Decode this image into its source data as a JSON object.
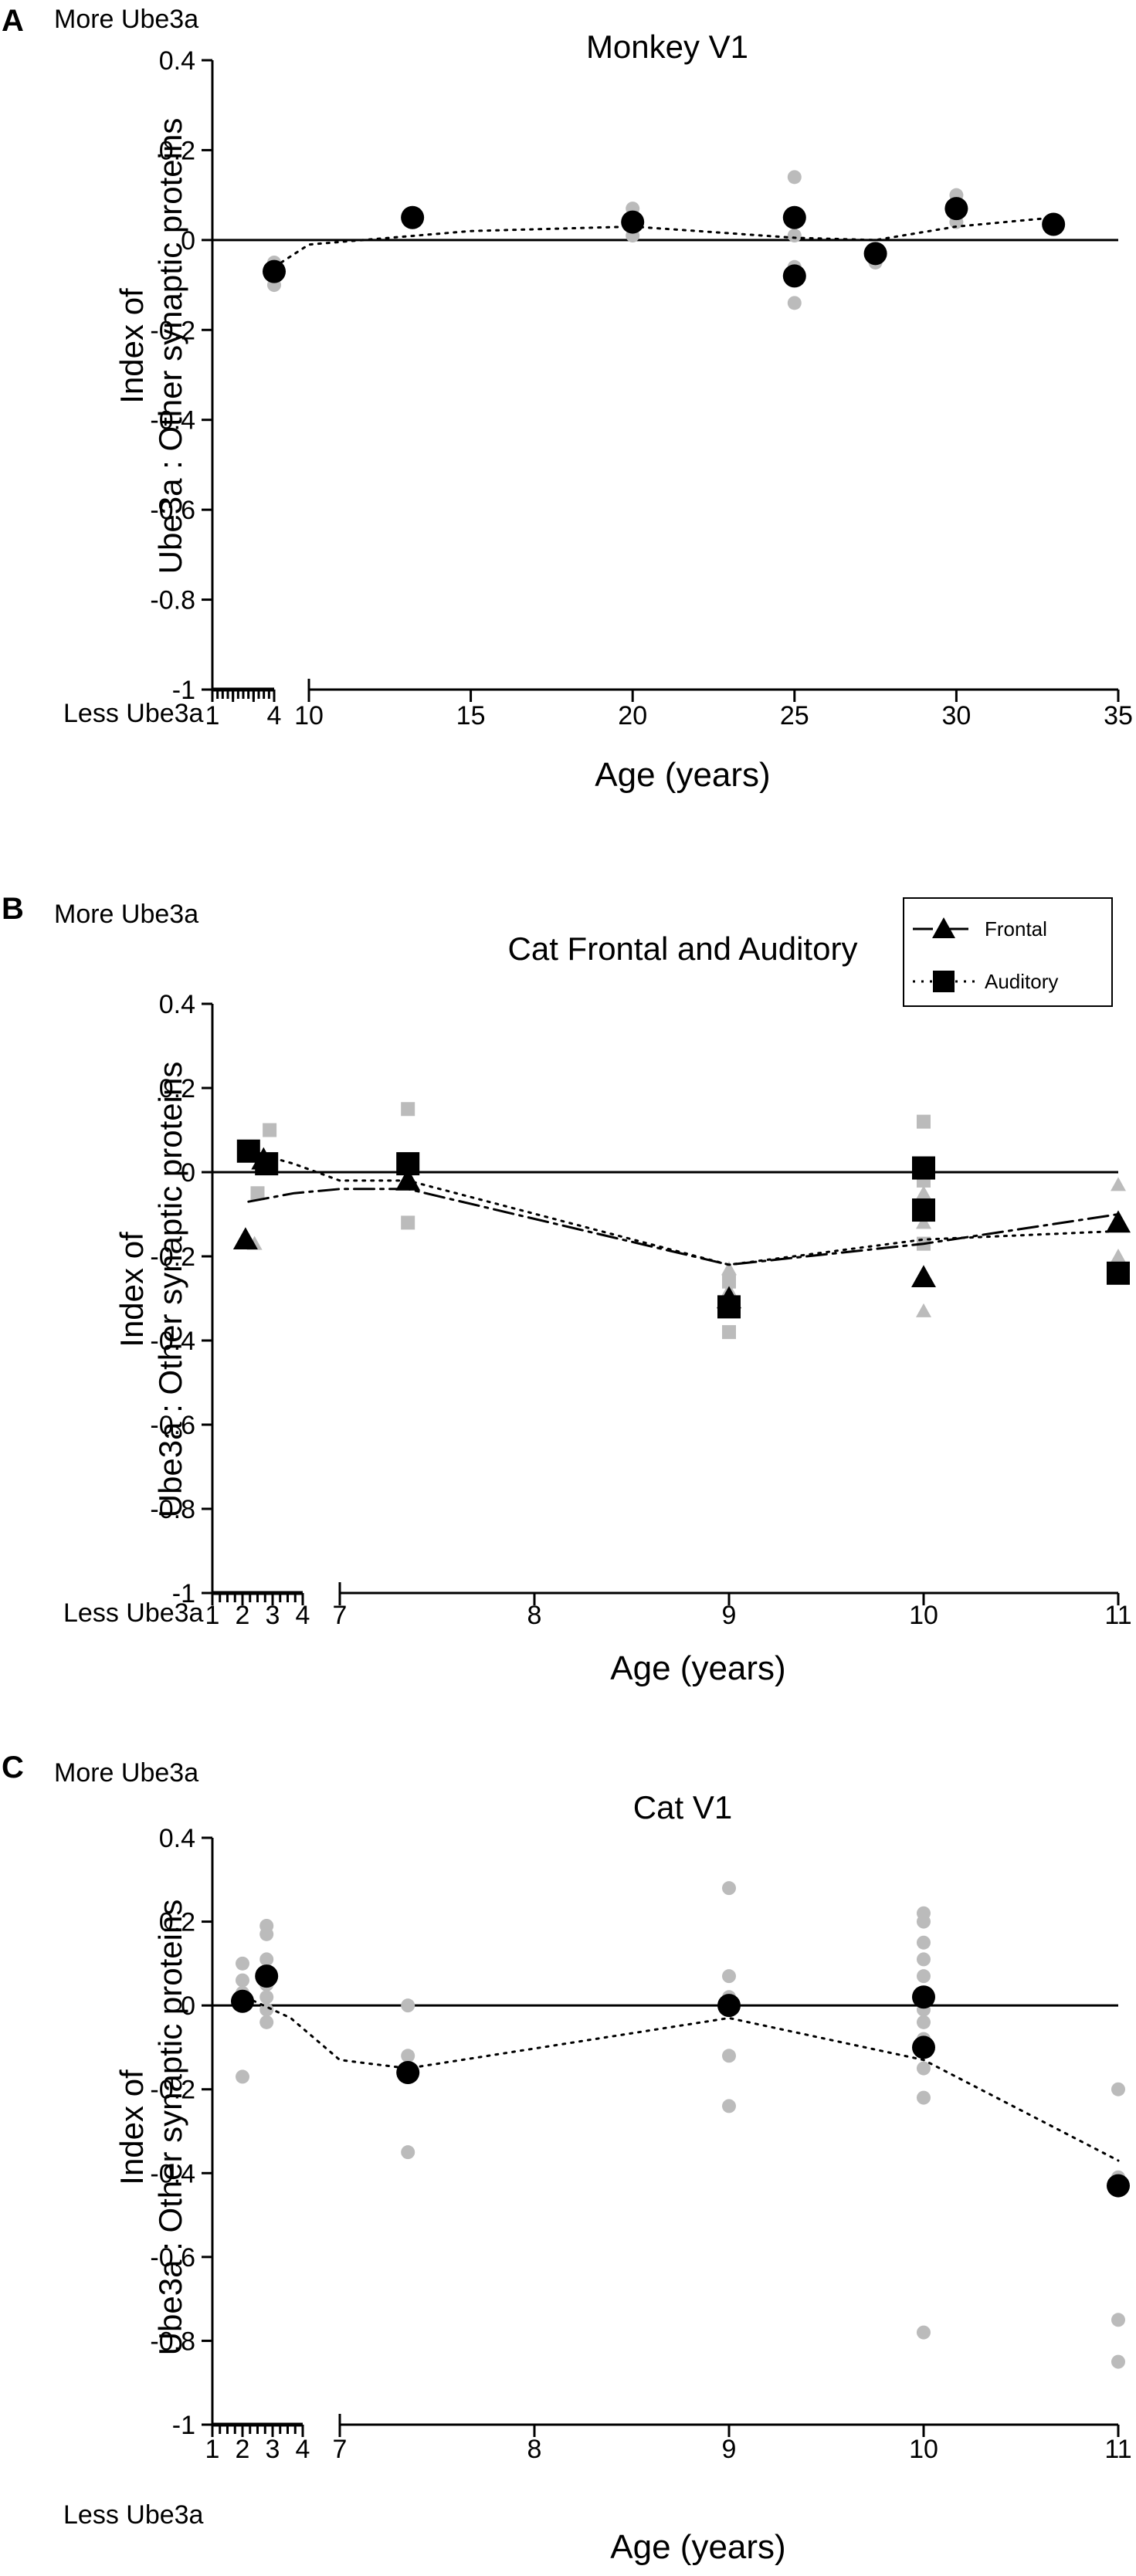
{
  "figure_description_text": {
    "ylabel_line1": "Index of",
    "ylabel_line2": "Ube3a : Other synaptic proteins"
  },
  "chart_data": [
    {
      "id": "A",
      "panel_letter": "A",
      "type": "scatter",
      "title": "Monkey V1",
      "xlabel": "Age (years)",
      "ylabel": "Index of Ube3a : Other synaptic proteins",
      "more_label": "More Ube3a",
      "less_label": "Less Ube3a",
      "ylim": [
        -1,
        0.4
      ],
      "y_ticks": [
        "0.4",
        "0.2",
        "0",
        "-0.2",
        "-0.4",
        "-0.6",
        "-0.8",
        "-1"
      ],
      "y_tick_values": [
        0.4,
        0.2,
        0,
        -0.2,
        -0.4,
        -0.6,
        -0.8,
        -1
      ],
      "x_segments": [
        {
          "range": [
            1,
            4
          ],
          "ticks": [
            1,
            2,
            3,
            4
          ],
          "tick_labels": [
            "1",
            "",
            "",
            "4"
          ],
          "minor_step": 0.25
        },
        {
          "range": [
            10,
            35
          ],
          "ticks": [
            10,
            15,
            20,
            25,
            30,
            35
          ],
          "tick_labels": [
            "10",
            "15",
            "20",
            "25",
            "30",
            "35"
          ]
        }
      ],
      "series": [
        {
          "name": "Individual",
          "marker": "circle",
          "color": "#bbbbbb",
          "points": [
            [
              4,
              -0.05
            ],
            [
              4,
              -0.1
            ],
            [
              13.2,
              0.06
            ],
            [
              13.2,
              0.04
            ],
            [
              20,
              0.07
            ],
            [
              20,
              0.01
            ],
            [
              25,
              0.14
            ],
            [
              25,
              0.06
            ],
            [
              25,
              0.01
            ],
            [
              25,
              -0.06
            ],
            [
              25,
              -0.14
            ],
            [
              27.5,
              -0.03
            ],
            [
              27.5,
              -0.05
            ],
            [
              30,
              0.1
            ],
            [
              30,
              0.04
            ]
          ]
        },
        {
          "name": "Mean",
          "marker": "circle",
          "color": "#000000",
          "points": [
            [
              4,
              -0.07
            ],
            [
              13.2,
              0.05
            ],
            [
              20,
              0.04
            ],
            [
              25,
              0.05
            ],
            [
              25,
              -0.08
            ],
            [
              27.5,
              -0.03
            ],
            [
              30,
              0.07
            ],
            [
              33,
              0.035
            ]
          ]
        },
        {
          "name": "Trend",
          "marker": "line",
          "style": "dotted",
          "color": "#000000",
          "points": [
            [
              4,
              -0.06
            ],
            [
              4.8,
              -0.05
            ],
            [
              10,
              -0.01
            ],
            [
              15,
              0.02
            ],
            [
              20,
              0.03
            ],
            [
              25,
              0.005
            ],
            [
              27.5,
              0.0
            ],
            [
              30,
              0.03
            ],
            [
              33,
              0.05
            ]
          ]
        }
      ]
    },
    {
      "id": "B",
      "panel_letter": "B",
      "type": "scatter",
      "title": "Cat Frontal and Auditory",
      "xlabel": "Age (years)",
      "ylabel": "Index of Ube3a : Other synaptic proteins",
      "more_label": "More Ube3a",
      "less_label": "Less Ube3a",
      "ylim": [
        -1,
        0.4
      ],
      "y_ticks": [
        "0.4",
        "0.2",
        "0",
        "-0.2",
        "-0.4",
        "-0.6",
        "-0.8",
        "-1"
      ],
      "y_tick_values": [
        0.4,
        0.2,
        0,
        -0.2,
        -0.4,
        -0.6,
        -0.8,
        -1
      ],
      "x_segments": [
        {
          "range": [
            1,
            4
          ],
          "ticks": [
            1,
            2,
            3,
            4
          ],
          "tick_labels": [
            "1",
            "2",
            "3",
            "4"
          ],
          "minor_step": 0.25
        },
        {
          "range": [
            7,
            11
          ],
          "ticks": [
            7,
            8,
            9,
            10,
            11
          ],
          "tick_labels": [
            "7",
            "8",
            "9",
            "10",
            "11"
          ]
        }
      ],
      "legend": [
        {
          "label": "Frontal",
          "marker": "triangle",
          "style": "dashdot"
        },
        {
          "label": "Auditory",
          "marker": "square",
          "style": "dotted"
        }
      ],
      "series": [
        {
          "name": "Frontal individual",
          "marker": "triangle",
          "color": "#bbbbbb",
          "points": [
            [
              2.2,
              0.05
            ],
            [
              2.4,
              -0.17
            ],
            [
              7.35,
              0.01
            ],
            [
              9,
              -0.23
            ],
            [
              9,
              -0.28
            ],
            [
              9,
              -0.3
            ],
            [
              10,
              -0.05
            ],
            [
              10,
              -0.12
            ],
            [
              10,
              -0.33
            ],
            [
              11,
              -0.03
            ],
            [
              11,
              -0.2
            ]
          ]
        },
        {
          "name": "Auditory individual",
          "marker": "square",
          "color": "#bbbbbb",
          "points": [
            [
              2.5,
              -0.05
            ],
            [
              2.9,
              0.1
            ],
            [
              7.35,
              0.15
            ],
            [
              7.35,
              -0.12
            ],
            [
              9,
              -0.26
            ],
            [
              9,
              -0.38
            ],
            [
              10,
              0.12
            ],
            [
              10,
              -0.02
            ],
            [
              10,
              -0.1
            ],
            [
              10,
              -0.17
            ]
          ]
        },
        {
          "name": "Frontal mean",
          "marker": "triangle",
          "color": "#000000",
          "points": [
            [
              2.1,
              -0.16
            ],
            [
              2.7,
              0.03
            ],
            [
              7.35,
              -0.02
            ],
            [
              9,
              -0.3
            ],
            [
              10,
              -0.25
            ],
            [
              11,
              -0.12
            ]
          ]
        },
        {
          "name": "Auditory mean",
          "marker": "square",
          "color": "#000000",
          "points": [
            [
              2.2,
              0.05
            ],
            [
              2.8,
              0.02
            ],
            [
              7.35,
              0.02
            ],
            [
              9,
              -0.32
            ],
            [
              10,
              0.01
            ],
            [
              10,
              -0.09
            ],
            [
              11,
              -0.24
            ]
          ]
        },
        {
          "name": "Frontal trend",
          "marker": "line",
          "style": "dashdot",
          "color": "#000000",
          "points": [
            [
              2.2,
              -0.07
            ],
            [
              3.7,
              -0.05
            ],
            [
              7,
              -0.04
            ],
            [
              7.35,
              -0.04
            ],
            [
              9,
              -0.22
            ],
            [
              10,
              -0.17
            ],
            [
              11,
              -0.1
            ]
          ]
        },
        {
          "name": "Auditory trend",
          "marker": "line",
          "style": "dotted",
          "color": "#000000",
          "points": [
            [
              2.2,
              0.05
            ],
            [
              3.7,
              0.02
            ],
            [
              7,
              -0.02
            ],
            [
              7.35,
              -0.02
            ],
            [
              9,
              -0.22
            ],
            [
              10,
              -0.16
            ],
            [
              11,
              -0.14
            ]
          ]
        }
      ]
    },
    {
      "id": "C",
      "panel_letter": "C",
      "type": "scatter",
      "title": "Cat V1",
      "xlabel": "Age (years)",
      "ylabel": "Index of Ube3a : Other synaptic proteins",
      "more_label": "More Ube3a",
      "less_label": "Less Ube3a",
      "ylim": [
        -1,
        0.4
      ],
      "y_ticks": [
        "0.4",
        "0.2",
        "0",
        "-0.2",
        "-0.4",
        "-0.6",
        "-0.8",
        "-1"
      ],
      "y_tick_values": [
        0.4,
        0.2,
        0,
        -0.2,
        -0.4,
        -0.6,
        -0.8,
        -1
      ],
      "x_segments": [
        {
          "range": [
            1,
            4
          ],
          "ticks": [
            1,
            2,
            3,
            4
          ],
          "tick_labels": [
            "1",
            "2",
            "3",
            "4"
          ],
          "minor_step": 0.25
        },
        {
          "range": [
            7,
            11
          ],
          "ticks": [
            7,
            8,
            9,
            10,
            11
          ],
          "tick_labels": [
            "7",
            "8",
            "9",
            "10",
            "11"
          ]
        }
      ],
      "series": [
        {
          "name": "Individual",
          "marker": "circle",
          "color": "#bbbbbb",
          "points": [
            [
              2,
              0.1
            ],
            [
              2,
              0.06
            ],
            [
              2,
              0.03
            ],
            [
              2,
              -0.17
            ],
            [
              2.8,
              0.19
            ],
            [
              2.8,
              0.17
            ],
            [
              2.8,
              0.11
            ],
            [
              2.8,
              0.05
            ],
            [
              2.8,
              0.02
            ],
            [
              2.8,
              -0.01
            ],
            [
              2.8,
              -0.04
            ],
            [
              7.35,
              0.0
            ],
            [
              7.35,
              -0.12
            ],
            [
              7.35,
              -0.35
            ],
            [
              9,
              0.28
            ],
            [
              9,
              0.07
            ],
            [
              9,
              0.02
            ],
            [
              9,
              -0.12
            ],
            [
              9,
              -0.24
            ],
            [
              10,
              0.22
            ],
            [
              10,
              0.2
            ],
            [
              10,
              0.15
            ],
            [
              10,
              0.11
            ],
            [
              10,
              0.07
            ],
            [
              10,
              0.03
            ],
            [
              10,
              -0.01
            ],
            [
              10,
              -0.04
            ],
            [
              10,
              -0.08
            ],
            [
              10,
              -0.15
            ],
            [
              10,
              -0.22
            ],
            [
              10,
              -0.78
            ],
            [
              11,
              -0.2
            ],
            [
              11,
              -0.41
            ],
            [
              11,
              -0.75
            ],
            [
              11,
              -0.85
            ]
          ]
        },
        {
          "name": "Mean",
          "marker": "circle",
          "color": "#000000",
          "points": [
            [
              2,
              0.01
            ],
            [
              2.8,
              0.07
            ],
            [
              7.35,
              -0.16
            ],
            [
              9,
              0.0
            ],
            [
              10,
              0.02
            ],
            [
              10,
              -0.1
            ],
            [
              11,
              -0.43
            ]
          ]
        },
        {
          "name": "Trend",
          "marker": "line",
          "style": "dotted",
          "color": "#000000",
          "points": [
            [
              2.1,
              0.02
            ],
            [
              3.6,
              -0.03
            ],
            [
              7,
              -0.13
            ],
            [
              7.35,
              -0.15
            ],
            [
              9,
              -0.03
            ],
            [
              10,
              -0.13
            ],
            [
              11,
              -0.37
            ]
          ]
        }
      ]
    }
  ]
}
